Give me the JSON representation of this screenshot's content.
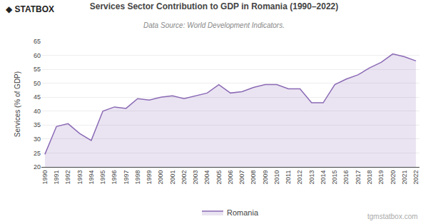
{
  "chart_data": {
    "type": "area",
    "title": "Services Sector Contribution to GDP in Romania (1990–2022)",
    "subtitle": "Data Source: World Development Indicators.",
    "ylabel": "Services (% of GDP)",
    "annotations": [
      "◆",
      "STATBOX",
      "tgmstatbox.com"
    ],
    "x": [
      1990,
      1991,
      1992,
      1993,
      1994,
      1995,
      1996,
      1997,
      1998,
      1999,
      2000,
      2001,
      2002,
      2003,
      2004,
      2005,
      2006,
      2007,
      2008,
      2009,
      2010,
      2011,
      2012,
      2013,
      2014,
      2015,
      2016,
      2017,
      2018,
      2019,
      2020,
      2021,
      2022
    ],
    "series": [
      {
        "name": "Romania",
        "color": "#8b6ab5",
        "values": [
          24.5,
          34.5,
          35.5,
          32.0,
          29.5,
          40.0,
          41.5,
          41.0,
          44.5,
          44.0,
          45.0,
          45.5,
          44.5,
          45.5,
          46.5,
          49.5,
          46.5,
          47.0,
          48.5,
          49.5,
          49.5,
          48.0,
          48.0,
          43.0,
          43.0,
          49.5,
          51.5,
          53.0,
          55.5,
          57.5,
          60.5,
          59.5,
          58.0
        ]
      }
    ],
    "xlim": [
      1989.7,
      2022.3
    ],
    "xticks": [
      1990,
      1991,
      1992,
      1993,
      1994,
      1995,
      1996,
      1997,
      1998,
      1999,
      2000,
      2001,
      2002,
      2003,
      2004,
      2005,
      2006,
      2007,
      2008,
      2009,
      2010,
      2011,
      2012,
      2013,
      2014,
      2015,
      2016,
      2017,
      2018,
      2019,
      2020,
      2021,
      2022
    ],
    "ylim": [
      20,
      65
    ],
    "yticks": [
      20,
      25,
      30,
      35,
      40,
      45,
      50,
      55,
      60,
      65
    ],
    "grid": true,
    "legend": "bottom"
  }
}
